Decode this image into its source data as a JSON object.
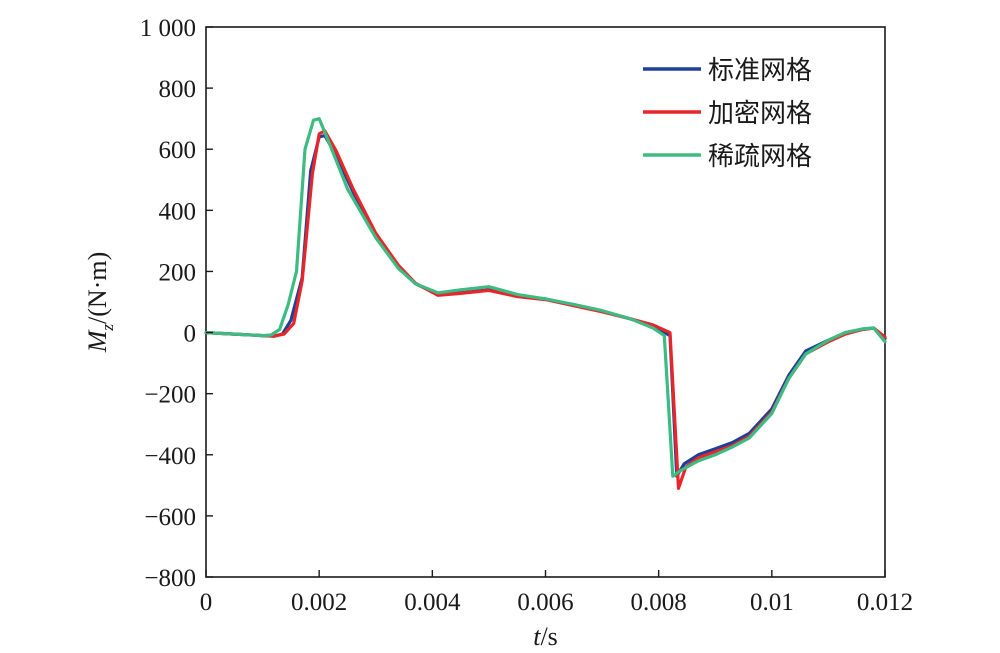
{
  "chart_data": {
    "type": "line",
    "title": "",
    "xlabel": "t/s",
    "ylabel": "Mz/(N·m)",
    "xlim": [
      0,
      0.012
    ],
    "ylim": [
      -800,
      1000
    ],
    "x_ticks": [
      0,
      0.002,
      0.004,
      0.006,
      0.008,
      0.01,
      0.012
    ],
    "x_tick_labels": [
      "0",
      "0.002",
      "0.004",
      "0.006",
      "0.008",
      "0.01",
      "0.012"
    ],
    "y_ticks": [
      1000,
      800,
      600,
      400,
      200,
      0,
      -200,
      -400,
      -600,
      -800
    ],
    "y_tick_labels": [
      "1 000",
      "800",
      "600",
      "400",
      "200",
      "0",
      "−200",
      "−400",
      "−600",
      "−800"
    ],
    "grid": false,
    "legend_position": "top-right",
    "series": [
      {
        "name": "标准网格",
        "color": "#1f3f9a",
        "x": [
          0,
          0.0005,
          0.001,
          0.0012,
          0.00135,
          0.0015,
          0.0017,
          0.00185,
          0.002,
          0.0021,
          0.0023,
          0.0026,
          0.003,
          0.0034,
          0.0037,
          0.0041,
          0.0045,
          0.005,
          0.0055,
          0.006,
          0.0065,
          0.007,
          0.0075,
          0.0079,
          0.0082,
          0.00832,
          0.00845,
          0.0087,
          0.009,
          0.0093,
          0.0096,
          0.01,
          0.0103,
          0.0106,
          0.011,
          0.0113,
          0.0116,
          0.0118,
          0.012
        ],
        "y": [
          0,
          -5,
          -10,
          -12,
          -5,
          40,
          180,
          530,
          640,
          645,
          580,
          460,
          320,
          215,
          160,
          125,
          130,
          140,
          120,
          110,
          90,
          70,
          45,
          20,
          -10,
          -470,
          -430,
          -400,
          -380,
          -360,
          -330,
          -250,
          -140,
          -60,
          -25,
          0,
          10,
          15,
          -20
        ]
      },
      {
        "name": "加密网格",
        "color": "#e8262a",
        "x": [
          0,
          0.0005,
          0.001,
          0.0012,
          0.00138,
          0.00155,
          0.0017,
          0.00188,
          0.002,
          0.0021,
          0.0023,
          0.0026,
          0.003,
          0.0034,
          0.0037,
          0.0041,
          0.0045,
          0.005,
          0.0055,
          0.006,
          0.0065,
          0.007,
          0.0075,
          0.0079,
          0.0082,
          0.00835,
          0.00848,
          0.0087,
          0.009,
          0.0093,
          0.0096,
          0.01,
          0.0103,
          0.0106,
          0.011,
          0.0113,
          0.0116,
          0.0118,
          0.012
        ],
        "y": [
          0,
          -5,
          -10,
          -12,
          -5,
          30,
          170,
          520,
          650,
          660,
          595,
          470,
          325,
          220,
          162,
          122,
          128,
          138,
          118,
          108,
          88,
          68,
          45,
          25,
          0,
          -510,
          -440,
          -410,
          -390,
          -370,
          -340,
          -260,
          -150,
          -70,
          -30,
          -5,
          10,
          15,
          -15
        ]
      },
      {
        "name": "稀疏网格",
        "color": "#3dbb82",
        "x": [
          0,
          0.0005,
          0.001,
          0.00115,
          0.0013,
          0.00145,
          0.0016,
          0.00175,
          0.0019,
          0.002,
          0.0022,
          0.0025,
          0.003,
          0.0034,
          0.0037,
          0.0041,
          0.0045,
          0.005,
          0.0055,
          0.006,
          0.0065,
          0.007,
          0.0075,
          0.0079,
          0.0081,
          0.00825,
          0.0084,
          0.0087,
          0.009,
          0.0093,
          0.0096,
          0.01,
          0.0103,
          0.0106,
          0.011,
          0.0113,
          0.0116,
          0.0118,
          0.012
        ],
        "y": [
          0,
          -5,
          -10,
          -8,
          10,
          90,
          200,
          600,
          695,
          700,
          610,
          470,
          310,
          210,
          160,
          130,
          140,
          150,
          125,
          110,
          92,
          72,
          45,
          15,
          -10,
          -470,
          -450,
          -420,
          -400,
          -375,
          -345,
          -265,
          -150,
          -70,
          -25,
          0,
          12,
          15,
          -30
        ]
      }
    ]
  }
}
